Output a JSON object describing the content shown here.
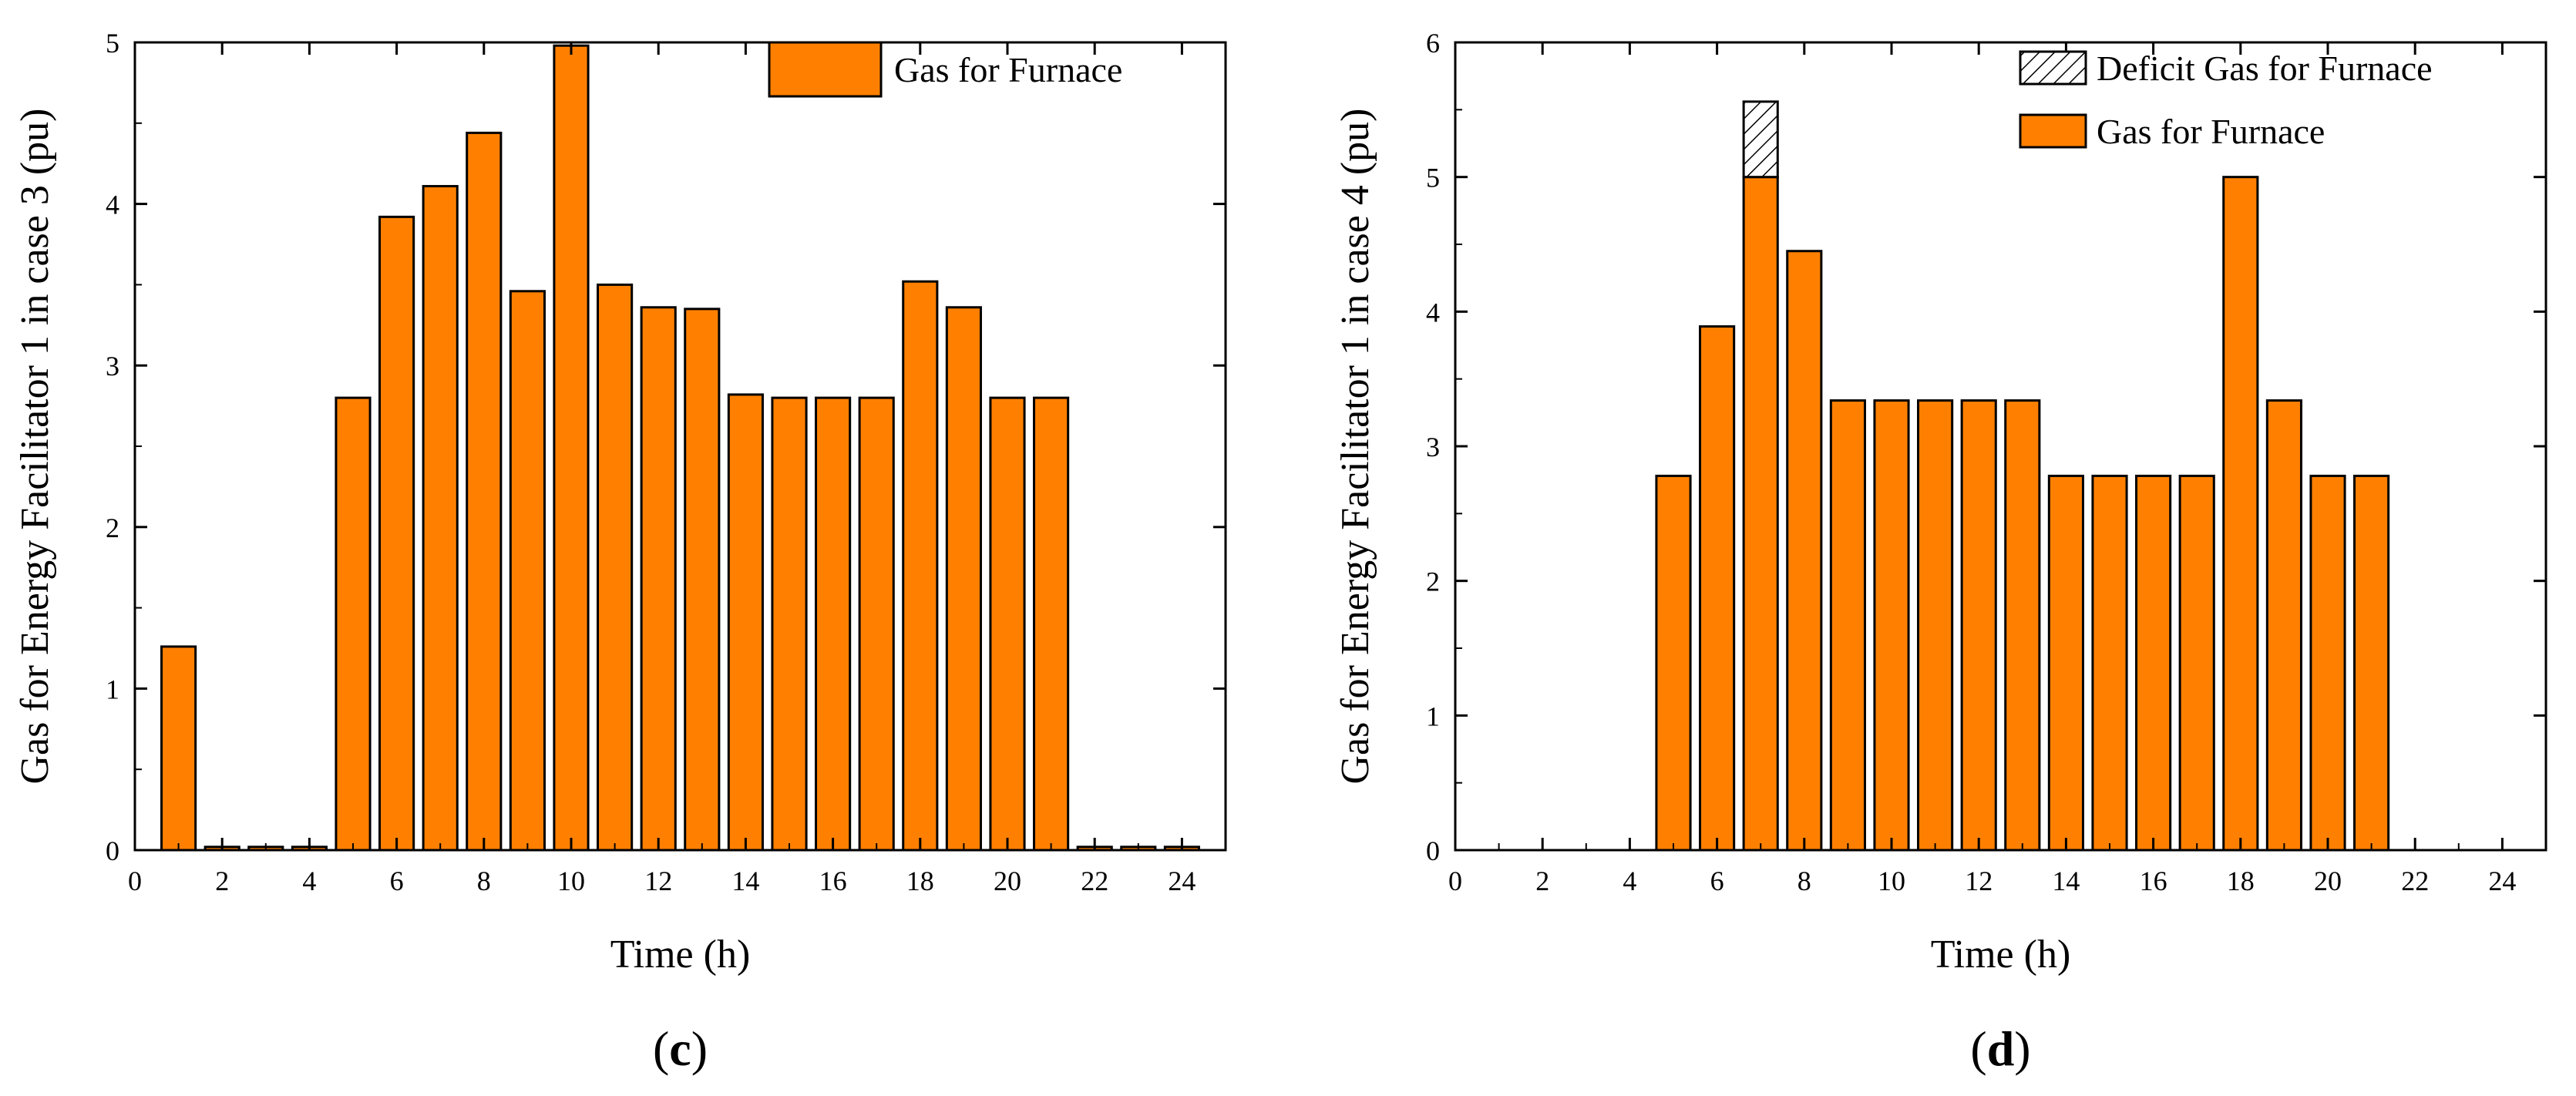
{
  "colors": {
    "bar_fill": "#FF8000",
    "bar_stroke": "#000000",
    "deficit_hatch": "#000000",
    "background": "#FFFFFF"
  },
  "chart_data": [
    {
      "type": "bar",
      "panel": "c",
      "panel_label": {
        "open": "(",
        "letter": "c",
        "close": ")"
      },
      "xlabel": "Time (h)",
      "ylabel": "Gas for Energy Facilitator 1 in case 3 (pu)",
      "xlim": [
        0,
        25
      ],
      "ylim": [
        0,
        5
      ],
      "xticks": [
        0,
        2,
        4,
        6,
        8,
        10,
        12,
        14,
        16,
        18,
        20,
        22,
        24
      ],
      "yticks": [
        0,
        1,
        2,
        3,
        4,
        5
      ],
      "legend_position": "top-right",
      "x": [
        1,
        2,
        3,
        4,
        5,
        6,
        7,
        8,
        9,
        10,
        11,
        12,
        13,
        14,
        15,
        16,
        17,
        18,
        19,
        20,
        21,
        22,
        23,
        24
      ],
      "series": [
        {
          "name": "Gas for Furnace",
          "pattern": "solid",
          "values": [
            1.26,
            0.02,
            0.02,
            0.02,
            2.8,
            3.92,
            4.11,
            4.44,
            3.46,
            4.98,
            3.5,
            3.36,
            3.35,
            2.82,
            2.8,
            2.8,
            2.8,
            3.52,
            3.36,
            2.8,
            2.8,
            0.02,
            0.02,
            0.02
          ]
        }
      ]
    },
    {
      "type": "bar",
      "panel": "d",
      "panel_label": {
        "open": "(",
        "letter": "d",
        "close": ")"
      },
      "xlabel": "Time (h)",
      "ylabel": "Gas for Energy Facilitator 1 in case 4 (pu)",
      "xlim": [
        0,
        25
      ],
      "ylim": [
        0,
        6
      ],
      "xticks": [
        0,
        2,
        4,
        6,
        8,
        10,
        12,
        14,
        16,
        18,
        20,
        22,
        24
      ],
      "yticks": [
        0,
        1,
        2,
        3,
        4,
        5,
        6
      ],
      "legend_position": "top-right",
      "stacked": true,
      "x": [
        1,
        2,
        3,
        4,
        5,
        6,
        7,
        8,
        9,
        10,
        11,
        12,
        13,
        14,
        15,
        16,
        17,
        18,
        19,
        20,
        21,
        22,
        23,
        24
      ],
      "series": [
        {
          "name": "Deficit Gas for Furnace",
          "pattern": "hatch",
          "values": [
            0,
            0,
            0,
            0,
            0,
            0,
            0.56,
            0,
            0,
            0,
            0,
            0,
            0,
            0,
            0,
            0,
            0,
            0,
            0,
            0,
            0,
            0,
            0,
            0
          ]
        },
        {
          "name": "Gas for Furnace",
          "pattern": "solid",
          "values": [
            0,
            0,
            0,
            0,
            2.78,
            3.89,
            5.0,
            4.45,
            3.34,
            3.34,
            3.34,
            3.34,
            3.34,
            2.78,
            2.78,
            2.78,
            2.78,
            5.0,
            3.34,
            2.78,
            2.78,
            0,
            0,
            0
          ]
        }
      ]
    }
  ]
}
